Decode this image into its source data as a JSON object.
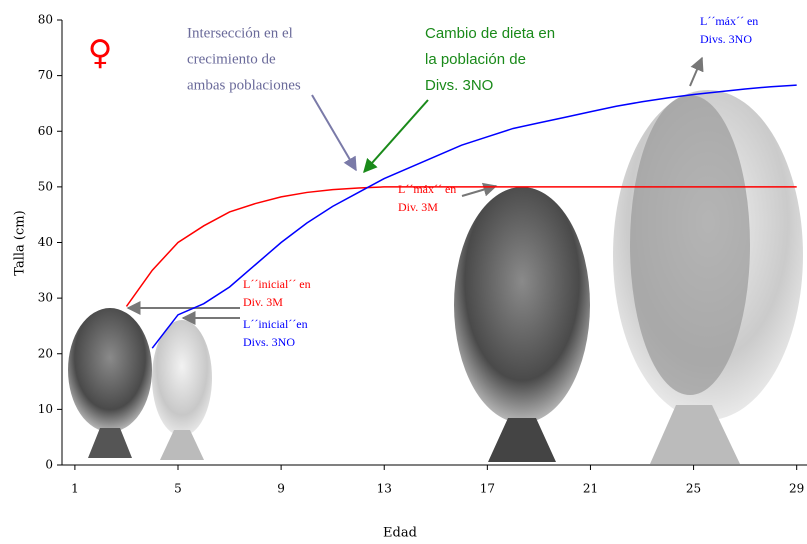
{
  "chart_data": {
    "type": "line",
    "x_label": "Edad",
    "y_label": "Talla (cm)",
    "symbol": "♀",
    "x": [
      3,
      4,
      5,
      6,
      7,
      8,
      9,
      10,
      11,
      12,
      13,
      14,
      15,
      16,
      17,
      18,
      19,
      20,
      21,
      22,
      23,
      24,
      25,
      26,
      27,
      28,
      29
    ],
    "series": [
      {
        "color": "#ff0000",
        "values": [
          28.5,
          35,
          40,
          43,
          45.5,
          47,
          48.2,
          49,
          49.5,
          49.8,
          50,
          50,
          50,
          50,
          50,
          50,
          50,
          50,
          50,
          50,
          50,
          50,
          50,
          50,
          50,
          50,
          50
        ]
      },
      {
        "color": "#0000ff",
        "values": [
          null,
          21,
          27,
          29,
          32,
          36,
          40,
          43.5,
          46.5,
          49,
          51.5,
          53.5,
          55.5,
          57.5,
          59,
          60.5,
          61.5,
          62.5,
          63.5,
          64.5,
          65.3,
          66,
          66.6,
          67.1,
          67.6,
          68,
          68.3
        ]
      }
    ],
    "xlim": [
      0.5,
      29.4
    ],
    "ylim": [
      0,
      80
    ],
    "xticks": [
      1,
      5,
      9,
      13,
      17,
      21,
      25,
      29
    ],
    "yticks": [
      0,
      10,
      20,
      30,
      40,
      50,
      60,
      70,
      80
    ],
    "annotations": [
      {
        "color": "#6a6a9a",
        "lines": [
          "Intersección en el",
          "crecimiento de",
          "ambas poblaciones"
        ]
      },
      {
        "color": "#1a8a1a",
        "lines": [
          "Cambio de dieta en",
          "la población de",
          "Divs. 3NO"
        ]
      },
      {
        "color": "#0000ff",
        "lines": [
          "L´´máx´´ en",
          "Divs. 3NO"
        ]
      },
      {
        "color": "#ff0000",
        "lines": [
          "L´´máx´´ en",
          "Div. 3M"
        ]
      },
      {
        "color": "#ff0000",
        "lines": [
          "L´´inicial´´ en",
          "Div. 3M"
        ]
      },
      {
        "color": "#0000ff",
        "lines": [
          "L´´inicial´´en",
          "Divs. 3NO"
        ]
      }
    ]
  }
}
